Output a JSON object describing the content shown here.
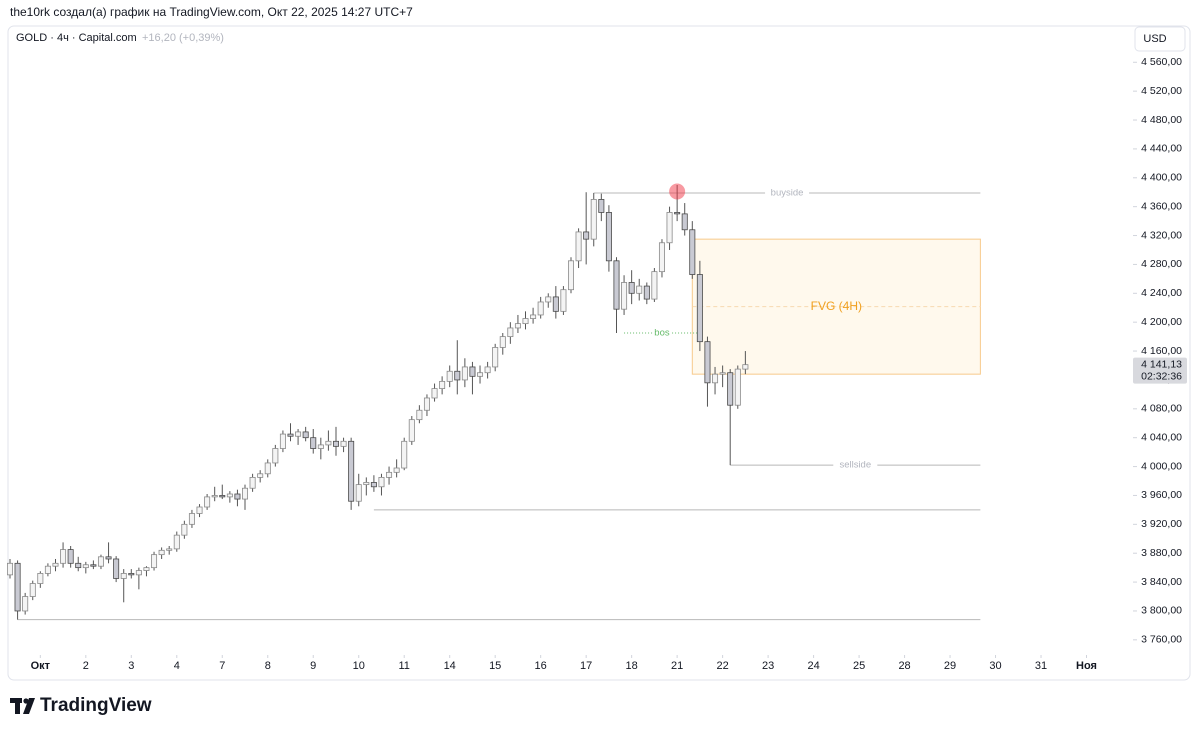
{
  "header": {
    "attribution": "the10rk создал(а) график на TradingView.com, Окт 22, 2025 14:27 UTC+7",
    "symbol": "GOLD · 4ч · Capital.com",
    "change": "+16,20 (+0,39%)",
    "currency": "USD"
  },
  "footer": {
    "logo": "TradingView"
  },
  "chart_data": {
    "type": "candlestick",
    "xlim": [
      0,
      148
    ],
    "ylim": [
      3739,
      4577
    ],
    "xticks": [
      {
        "value": 4,
        "label": "Окт"
      },
      {
        "value": 10,
        "label": "2"
      },
      {
        "value": 16,
        "label": "3"
      },
      {
        "value": 22,
        "label": "4"
      },
      {
        "value": 28,
        "label": "7"
      },
      {
        "value": 34,
        "label": "8"
      },
      {
        "value": 40,
        "label": "9"
      },
      {
        "value": 46,
        "label": "10"
      },
      {
        "value": 52,
        "label": "11"
      },
      {
        "value": 58,
        "label": "14"
      },
      {
        "value": 64,
        "label": "15"
      },
      {
        "value": 70,
        "label": "16"
      },
      {
        "value": 76,
        "label": "17"
      },
      {
        "value": 82,
        "label": "18"
      },
      {
        "value": 88,
        "label": "21"
      },
      {
        "value": 94,
        "label": "22"
      },
      {
        "value": 100,
        "label": "23"
      },
      {
        "value": 106,
        "label": "24"
      },
      {
        "value": 112,
        "label": "25"
      },
      {
        "value": 118,
        "label": "28"
      },
      {
        "value": 124,
        "label": "29"
      },
      {
        "value": 130,
        "label": "30"
      },
      {
        "value": 136,
        "label": "31"
      },
      {
        "value": 142,
        "label": "Ноя"
      }
    ],
    "yticks": [
      {
        "value": 3760,
        "label": "3 760,00"
      },
      {
        "value": 3800,
        "label": "3 800,00"
      },
      {
        "value": 3840,
        "label": "3 840,00"
      },
      {
        "value": 3880,
        "label": "3 880,00"
      },
      {
        "value": 3920,
        "label": "3 920,00"
      },
      {
        "value": 3960,
        "label": "3 960,00"
      },
      {
        "value": 4000,
        "label": "4 000,00"
      },
      {
        "value": 4040,
        "label": "4 040,00"
      },
      {
        "value": 4080,
        "label": "4 080,00"
      },
      {
        "value": 4120,
        "label": "4 120,00"
      },
      {
        "value": 4160,
        "label": "4 160,00"
      },
      {
        "value": 4200,
        "label": "4 200,00"
      },
      {
        "value": 4240,
        "label": "4 240,00"
      },
      {
        "value": 4280,
        "label": "4 280,00"
      },
      {
        "value": 4320,
        "label": "4 320,00"
      },
      {
        "value": 4360,
        "label": "4 360,00"
      },
      {
        "value": 4400,
        "label": "4 400,00"
      },
      {
        "value": 4440,
        "label": "4 440,00"
      },
      {
        "value": 4480,
        "label": "4 480,00"
      },
      {
        "value": 4520,
        "label": "4 520,00"
      },
      {
        "value": 4560,
        "label": "4 560,00"
      }
    ],
    "ohlc": [
      [
        3850,
        3872,
        3845,
        3866
      ],
      [
        3866,
        3870,
        3788,
        3800
      ],
      [
        3800,
        3825,
        3795,
        3820
      ],
      [
        3820,
        3842,
        3815,
        3838
      ],
      [
        3838,
        3855,
        3832,
        3852
      ],
      [
        3852,
        3866,
        3848,
        3862
      ],
      [
        3862,
        3872,
        3855,
        3866
      ],
      [
        3866,
        3895,
        3860,
        3885
      ],
      [
        3885,
        3890,
        3860,
        3866
      ],
      [
        3866,
        3875,
        3855,
        3860
      ],
      [
        3860,
        3868,
        3852,
        3864
      ],
      [
        3864,
        3870,
        3858,
        3862
      ],
      [
        3862,
        3878,
        3858,
        3875
      ],
      [
        3875,
        3895,
        3866,
        3872
      ],
      [
        3872,
        3876,
        3840,
        3845
      ],
      [
        3845,
        3858,
        3812,
        3852
      ],
      [
        3852,
        3858,
        3845,
        3850
      ],
      [
        3850,
        3860,
        3830,
        3856
      ],
      [
        3856,
        3862,
        3848,
        3860
      ],
      [
        3860,
        3882,
        3856,
        3878
      ],
      [
        3878,
        3888,
        3872,
        3884
      ],
      [
        3884,
        3890,
        3878,
        3886
      ],
      [
        3886,
        3910,
        3882,
        3905
      ],
      [
        3905,
        3925,
        3900,
        3920
      ],
      [
        3920,
        3940,
        3915,
        3935
      ],
      [
        3935,
        3948,
        3930,
        3944
      ],
      [
        3944,
        3962,
        3940,
        3958
      ],
      [
        3958,
        3972,
        3952,
        3960
      ],
      [
        3960,
        3975,
        3955,
        3958
      ],
      [
        3958,
        3966,
        3950,
        3962
      ],
      [
        3962,
        3968,
        3945,
        3955
      ],
      [
        3955,
        3975,
        3940,
        3970
      ],
      [
        3970,
        3990,
        3965,
        3985
      ],
      [
        3985,
        3995,
        3978,
        3990
      ],
      [
        3990,
        4010,
        3985,
        4005
      ],
      [
        4005,
        4030,
        4000,
        4025
      ],
      [
        4025,
        4050,
        4020,
        4045
      ],
      [
        4045,
        4060,
        4035,
        4042
      ],
      [
        4042,
        4052,
        4030,
        4048
      ],
      [
        4048,
        4055,
        4035,
        4040
      ],
      [
        4040,
        4052,
        4018,
        4025
      ],
      [
        4025,
        4040,
        4010,
        4030
      ],
      [
        4030,
        4050,
        4022,
        4035
      ],
      [
        4035,
        4055,
        4015,
        4028
      ],
      [
        4028,
        4040,
        4020,
        4035
      ],
      [
        4035,
        4040,
        3940,
        3952
      ],
      [
        3952,
        3990,
        3945,
        3975
      ],
      [
        3975,
        3985,
        3960,
        3978
      ],
      [
        3978,
        3988,
        3965,
        3972
      ],
      [
        3972,
        3990,
        3960,
        3985
      ],
      [
        3985,
        4000,
        3975,
        3992
      ],
      [
        3992,
        4010,
        3985,
        3998
      ],
      [
        3998,
        4040,
        3995,
        4035
      ],
      [
        4035,
        4070,
        4030,
        4065
      ],
      [
        4065,
        4085,
        4060,
        4078
      ],
      [
        4078,
        4100,
        4070,
        4095
      ],
      [
        4095,
        4115,
        4090,
        4108
      ],
      [
        4108,
        4125,
        4100,
        4118
      ],
      [
        4118,
        4140,
        4110,
        4132
      ],
      [
        4132,
        4175,
        4100,
        4120
      ],
      [
        4120,
        4150,
        4110,
        4138
      ],
      [
        4138,
        4145,
        4100,
        4125
      ],
      [
        4125,
        4140,
        4115,
        4130
      ],
      [
        4130,
        4145,
        4122,
        4138
      ],
      [
        4138,
        4170,
        4132,
        4165
      ],
      [
        4165,
        4185,
        4155,
        4180
      ],
      [
        4180,
        4200,
        4170,
        4192
      ],
      [
        4192,
        4210,
        4185,
        4198
      ],
      [
        4198,
        4215,
        4190,
        4205
      ],
      [
        4205,
        4220,
        4198,
        4210
      ],
      [
        4210,
        4235,
        4205,
        4228
      ],
      [
        4228,
        4240,
        4220,
        4235
      ],
      [
        4235,
        4250,
        4205,
        4215
      ],
      [
        4215,
        4250,
        4210,
        4245
      ],
      [
        4245,
        4290,
        4240,
        4285
      ],
      [
        4285,
        4330,
        4275,
        4325
      ],
      [
        4325,
        4380,
        4280,
        4315
      ],
      [
        4315,
        4379,
        4305,
        4370
      ],
      [
        4370,
        4378,
        4340,
        4352
      ],
      [
        4352,
        4362,
        4270,
        4285
      ],
      [
        4285,
        4290,
        4185,
        4218
      ],
      [
        4218,
        4265,
        4210,
        4255
      ],
      [
        4255,
        4272,
        4225,
        4240
      ],
      [
        4240,
        4260,
        4230,
        4250
      ],
      [
        4250,
        4255,
        4225,
        4232
      ],
      [
        4232,
        4275,
        4228,
        4270
      ],
      [
        4270,
        4315,
        4262,
        4310
      ],
      [
        4310,
        4360,
        4300,
        4352
      ],
      [
        4352,
        4390,
        4340,
        4350
      ],
      [
        4350,
        4365,
        4320,
        4328
      ],
      [
        4328,
        4340,
        4260,
        4266
      ],
      [
        4266,
        4285,
        4160,
        4173
      ],
      [
        4173,
        4180,
        4083,
        4116
      ],
      [
        4116,
        4138,
        4100,
        4128
      ],
      [
        4128,
        4140,
        4110,
        4130
      ],
      [
        4130,
        4135,
        4002,
        4085
      ],
      [
        4085,
        4140,
        4080,
        4135
      ],
      [
        4135,
        4160,
        4128,
        4141.13
      ]
    ],
    "levels": [
      {
        "label": "buyside",
        "value": 4379,
        "x": [
          77,
          128
        ]
      },
      {
        "label": "sellside",
        "value": 4002,
        "x": [
          95,
          128
        ]
      },
      {
        "value": 3940,
        "x": [
          48,
          128
        ]
      },
      {
        "value": 3788,
        "x": [
          1,
          128
        ]
      }
    ],
    "fvg": {
      "label": "FVG (4H)",
      "top": 4315,
      "bottom": 4128,
      "x": [
        90,
        128
      ]
    },
    "bos": {
      "label": "bos",
      "value": 4185,
      "x": [
        81,
        91
      ]
    },
    "highlight": {
      "x": 88,
      "value": 4381
    },
    "last_price": {
      "value": 4141.13,
      "label": "4 141,13"
    },
    "countdown": "02:32:36"
  }
}
